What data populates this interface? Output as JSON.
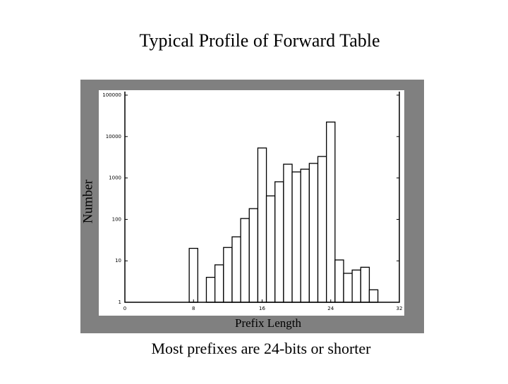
{
  "chart_data": {
    "type": "histogram",
    "title": "Typical Profile of Forward Table",
    "xlabel": "Prefix Length",
    "ylabel": "Number",
    "caption": "Most prefixes are 24-bits or shorter",
    "bins": [
      7.5,
      8.5,
      9.5,
      10.5,
      11.5,
      12.5,
      13.5,
      14.5,
      15.5,
      16.5,
      17.5,
      18.5,
      19.5,
      20.5,
      21.5,
      22.5,
      23.5,
      24.5,
      25.5,
      26.5,
      27.5,
      28.5,
      29.5
    ],
    "values": [
      20,
      1,
      4,
      8,
      21,
      38,
      105,
      182,
      5300,
      370,
      810,
      2150,
      1400,
      1630,
      2250,
      3300,
      22400,
      10.5,
      5,
      6,
      7,
      2
    ],
    "color": "#ffffff",
    "edgecolor": "#000000",
    "xlim": [
      0,
      32
    ],
    "xticks": [
      0,
      8,
      16,
      24,
      32
    ],
    "ylim": [
      1,
      100000
    ],
    "yticks": [
      1,
      10,
      100,
      1000,
      10000,
      100000
    ],
    "yscale": "log"
  }
}
